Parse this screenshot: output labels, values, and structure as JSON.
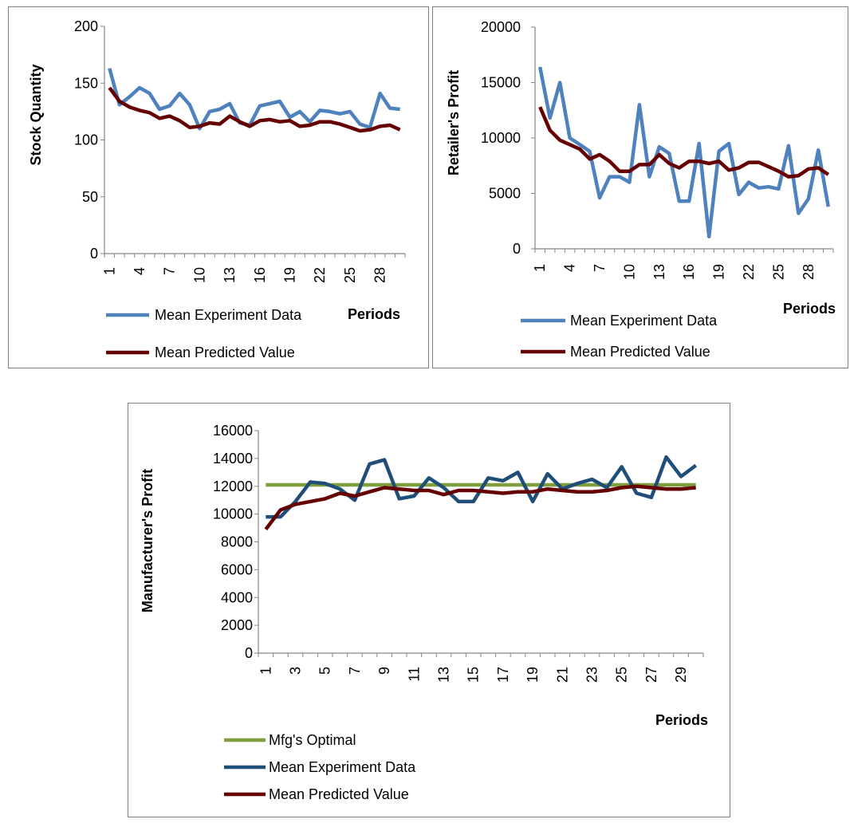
{
  "chart_data": [
    {
      "type": "line",
      "title": "",
      "xlabel": "Periods",
      "ylabel": "Stock Quantity",
      "ylim": [
        0,
        200
      ],
      "yticks": [
        0,
        50,
        100,
        150,
        200
      ],
      "x": [
        1,
        2,
        3,
        4,
        5,
        6,
        7,
        8,
        9,
        10,
        11,
        12,
        13,
        14,
        15,
        16,
        17,
        18,
        19,
        20,
        21,
        22,
        23,
        24,
        25,
        26,
        27,
        28,
        29,
        30
      ],
      "xtick_labels": [
        "1",
        "4",
        "7",
        "10",
        "13",
        "16",
        "19",
        "22",
        "25",
        "28"
      ],
      "grid": false,
      "legend_position": "bottom",
      "series": [
        {
          "name": "Mean Experiment Data",
          "color": "#4F81BD",
          "values": [
            163,
            131,
            138,
            146,
            141,
            127,
            130,
            141,
            131,
            110,
            125,
            127,
            132,
            115,
            113,
            130,
            132,
            134,
            120,
            125,
            116,
            126,
            125,
            123,
            125,
            114,
            111,
            141,
            128,
            127
          ]
        },
        {
          "name": "Mean Predicted Value",
          "color": "#660000",
          "values": [
            146,
            134,
            129,
            126,
            124,
            119,
            121,
            117,
            111,
            112,
            115,
            114,
            121,
            116,
            112,
            117,
            118,
            116,
            117,
            112,
            113,
            116,
            116,
            114,
            111,
            108,
            109,
            112,
            113,
            109
          ]
        }
      ]
    },
    {
      "type": "line",
      "title": "",
      "xlabel": "Periods",
      "ylabel": "Retailer's Profit",
      "ylim": [
        0,
        20000
      ],
      "yticks": [
        0,
        5000,
        10000,
        15000,
        20000
      ],
      "x": [
        1,
        2,
        3,
        4,
        5,
        6,
        7,
        8,
        9,
        10,
        11,
        12,
        13,
        14,
        15,
        16,
        17,
        18,
        19,
        20,
        21,
        22,
        23,
        24,
        25,
        26,
        27,
        28,
        29,
        30
      ],
      "xtick_labels": [
        "1",
        "4",
        "7",
        "10",
        "13",
        "16",
        "19",
        "22",
        "25",
        "28"
      ],
      "grid": false,
      "legend_position": "bottom",
      "series": [
        {
          "name": "Mean Experiment Data",
          "color": "#4F81BD",
          "values": [
            16400,
            11800,
            15000,
            10000,
            9400,
            8800,
            4600,
            6500,
            6500,
            6000,
            13000,
            6500,
            9200,
            8600,
            4300,
            4300,
            9500,
            1100,
            8800,
            9500,
            4900,
            6000,
            5500,
            5600,
            5400,
            9300,
            3200,
            4500,
            8900,
            3800
          ]
        },
        {
          "name": "Mean Predicted Value",
          "color": "#660000",
          "values": [
            12800,
            10700,
            9800,
            9400,
            9000,
            8100,
            8500,
            7900,
            7000,
            7000,
            7600,
            7600,
            8500,
            7700,
            7300,
            7900,
            7900,
            7700,
            7900,
            7100,
            7300,
            7800,
            7800,
            7400,
            7000,
            6500,
            6600,
            7200,
            7300,
            6700
          ]
        }
      ]
    },
    {
      "type": "line",
      "title": "",
      "xlabel": "Periods",
      "ylabel": "Manufacturer's Profit",
      "ylim": [
        0,
        16000
      ],
      "yticks": [
        0,
        2000,
        4000,
        6000,
        8000,
        10000,
        12000,
        14000,
        16000
      ],
      "x": [
        1,
        2,
        3,
        4,
        5,
        6,
        7,
        8,
        9,
        10,
        11,
        12,
        13,
        14,
        15,
        16,
        17,
        18,
        19,
        20,
        21,
        22,
        23,
        24,
        25,
        26,
        27,
        28,
        29,
        30
      ],
      "xtick_labels": [
        "1",
        "3",
        "5",
        "7",
        "9",
        "11",
        "13",
        "15",
        "17",
        "19",
        "21",
        "23",
        "25",
        "27",
        "29"
      ],
      "grid": false,
      "legend_position": "bottom",
      "series": [
        {
          "name": "Mfg's Optimal",
          "color": "#7F9F3F",
          "values": [
            12100,
            12100,
            12100,
            12100,
            12100,
            12100,
            12100,
            12100,
            12100,
            12100,
            12100,
            12100,
            12100,
            12100,
            12100,
            12100,
            12100,
            12100,
            12100,
            12100,
            12100,
            12100,
            12100,
            12100,
            12100,
            12100,
            12100,
            12100,
            12100,
            12100
          ]
        },
        {
          "name": "Mean Experiment Data",
          "color": "#1F4E79",
          "values": [
            9800,
            9800,
            10900,
            12300,
            12200,
            11800,
            11000,
            13600,
            13900,
            11100,
            11300,
            12600,
            11900,
            10900,
            10900,
            12600,
            12400,
            13000,
            10900,
            12900,
            11800,
            12200,
            12500,
            11900,
            13400,
            11500,
            11200,
            14100,
            12700,
            13500
          ]
        },
        {
          "name": "Mean Predicted Value",
          "color": "#660000",
          "values": [
            8900,
            10300,
            10700,
            10900,
            11100,
            11500,
            11300,
            11600,
            11900,
            11800,
            11700,
            11700,
            11400,
            11700,
            11700,
            11600,
            11500,
            11600,
            11600,
            11800,
            11700,
            11600,
            11600,
            11700,
            11900,
            12000,
            11900,
            11800,
            11800,
            11900
          ]
        }
      ]
    }
  ]
}
